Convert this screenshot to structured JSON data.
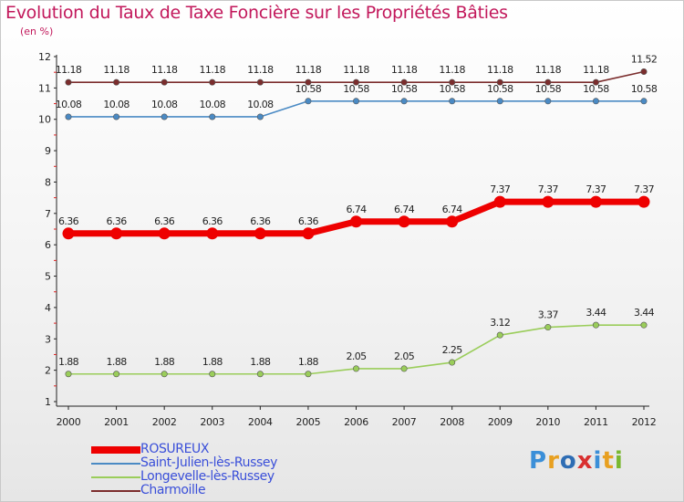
{
  "header": {
    "title": "Evolution du Taux de Taxe Foncière sur les Propriétés Bâties",
    "unit": "(en %)"
  },
  "logo": {
    "text": "Proxiti",
    "colors": [
      "#3b8fd8",
      "#e8a020",
      "#2e6db4",
      "#d93030",
      "#3b8fd8",
      "#e8a020",
      "#7ab830"
    ]
  },
  "chart_data": {
    "type": "line",
    "x": [
      "2000",
      "2001",
      "2002",
      "2003",
      "2004",
      "2005",
      "2006",
      "2007",
      "2008",
      "2009",
      "2010",
      "2011",
      "2012"
    ],
    "ylim": [
      1,
      12
    ],
    "yticks": [
      "1",
      "2",
      "3",
      "4",
      "5",
      "6",
      "7",
      "8",
      "9",
      "10",
      "11",
      "12"
    ],
    "grid": false,
    "legend_position": "bottom-left",
    "series": [
      {
        "name": "Charmoille",
        "color": "#7b2d2d",
        "values": [
          11.18,
          11.18,
          11.18,
          11.18,
          11.18,
          11.18,
          11.18,
          11.18,
          11.18,
          11.18,
          11.18,
          11.18,
          11.52
        ],
        "labels": [
          "11.18",
          "11.18",
          "11.18",
          "11.18",
          "11.18",
          "11.18",
          "11.18",
          "11.18",
          "11.18",
          "11.18",
          "11.18",
          "11.18",
          "11.52"
        ]
      },
      {
        "name": "Saint-Julien-lès-Russey",
        "color": "#4a8ac4",
        "values": [
          10.08,
          10.08,
          10.08,
          10.08,
          10.08,
          10.58,
          10.58,
          10.58,
          10.58,
          10.58,
          10.58,
          10.58,
          10.58
        ],
        "labels": [
          "10.08",
          "10.08",
          "10.08",
          "10.08",
          "10.08",
          "10.58",
          "10.58",
          "10.58",
          "10.58",
          "10.58",
          "10.58",
          "10.58",
          "10.58"
        ]
      },
      {
        "name": "ROSUREUX",
        "color": "#ee0000",
        "values": [
          6.36,
          6.36,
          6.36,
          6.36,
          6.36,
          6.36,
          6.74,
          6.74,
          6.74,
          7.37,
          7.37,
          7.37,
          7.37
        ],
        "labels": [
          "6.36",
          "6.36",
          "6.36",
          "6.36",
          "6.36",
          "6.36",
          "6.74",
          "6.74",
          "6.74",
          "7.37",
          "7.37",
          "7.37",
          "7.37"
        ]
      },
      {
        "name": "Longevelle-lès-Russey",
        "color": "#9acd5a",
        "values": [
          1.88,
          1.88,
          1.88,
          1.88,
          1.88,
          1.88,
          2.05,
          2.05,
          2.25,
          3.12,
          3.37,
          3.44,
          3.44
        ],
        "labels": [
          "1.88",
          "1.88",
          "1.88",
          "1.88",
          "1.88",
          "1.88",
          "2.05",
          "2.05",
          "2.25",
          "3.12",
          "3.37",
          "3.44",
          "3.44"
        ]
      }
    ],
    "legend_order": [
      "ROSUREUX",
      "Saint-Julien-lès-Russey",
      "Longevelle-lès-Russey",
      "Charmoille"
    ]
  }
}
